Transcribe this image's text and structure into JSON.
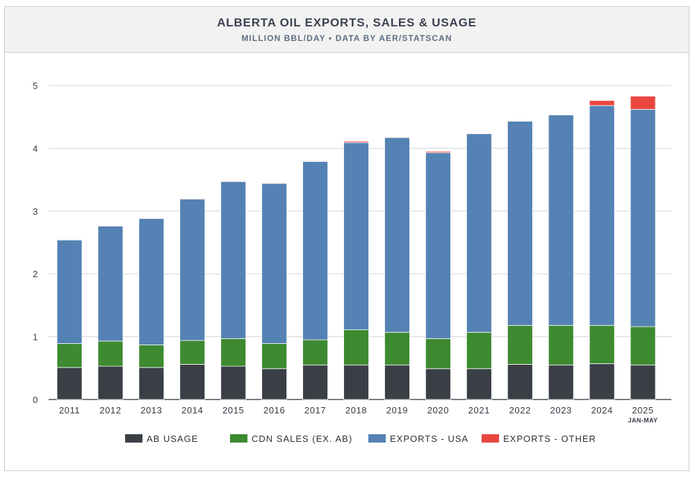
{
  "title": "ALBERTA OIL EXPORTS, SALES & USAGE",
  "subtitle": "MILLION BBL/DAY • DATA BY AER/STATSCAN",
  "colors": {
    "ab_usage": "#3a3f46",
    "cdn_sales": "#3d8a30",
    "exports_usa": "#5482b4",
    "exports_other": "#e8463f",
    "grid": "#d3d5d9",
    "axis": "#2b2f36"
  },
  "chart_data": {
    "type": "bar",
    "stacked": true,
    "title": "ALBERTA OIL EXPORTS, SALES & USAGE",
    "subtitle": "MILLION BBL/DAY • DATA BY AER/STATSCAN",
    "categories": [
      "2011",
      "2012",
      "2013",
      "2014",
      "2015",
      "2016",
      "2017",
      "2018",
      "2019",
      "2020",
      "2021",
      "2022",
      "2023",
      "2024",
      "2025"
    ],
    "category_sublabels": [
      "",
      "",
      "",
      "",
      "",
      "",
      "",
      "",
      "",
      "",
      "",
      "",
      "",
      "",
      "JAN-MAY"
    ],
    "series": [
      {
        "name": "AB USAGE",
        "color_key": "ab_usage",
        "values": [
          0.51,
          0.53,
          0.51,
          0.56,
          0.53,
          0.49,
          0.55,
          0.55,
          0.55,
          0.49,
          0.49,
          0.56,
          0.55,
          0.57,
          0.55
        ]
      },
      {
        "name": "CDN SALES (EX. AB)",
        "color_key": "cdn_sales",
        "values": [
          0.38,
          0.4,
          0.36,
          0.38,
          0.44,
          0.4,
          0.4,
          0.56,
          0.52,
          0.48,
          0.58,
          0.62,
          0.63,
          0.61,
          0.61
        ]
      },
      {
        "name": "EXPORTS - USA",
        "color_key": "exports_usa",
        "values": [
          1.65,
          1.83,
          2.01,
          2.25,
          2.5,
          2.55,
          2.84,
          2.98,
          3.1,
          2.96,
          3.16,
          3.25,
          3.35,
          3.5,
          3.46
        ]
      },
      {
        "name": "EXPORTS - OTHER",
        "color_key": "exports_other",
        "values": [
          0.01,
          0.01,
          0.01,
          0.01,
          0.01,
          0.01,
          0.01,
          0.02,
          0.01,
          0.02,
          0.01,
          0.0,
          0.01,
          0.08,
          0.21
        ]
      }
    ],
    "y_ticks": [
      "0",
      "1",
      "2",
      "3",
      "4",
      "5"
    ],
    "ylim": [
      0,
      5
    ],
    "grid": true,
    "legend_position": "bottom"
  }
}
